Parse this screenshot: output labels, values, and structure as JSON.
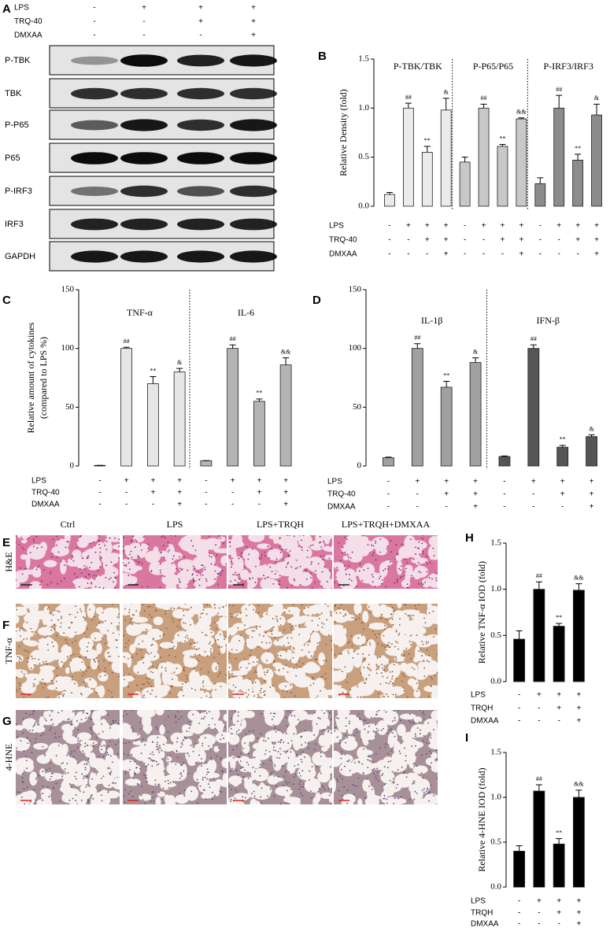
{
  "blot": {
    "panel": "A",
    "conditions": [
      {
        "name": "LPS",
        "signs": [
          "-",
          "+",
          "+",
          "+"
        ]
      },
      {
        "name": "TRQ-40",
        "signs": [
          "-",
          "-",
          "+",
          "+"
        ]
      },
      {
        "name": "DMXAA",
        "signs": [
          "-",
          "-",
          "-",
          "+"
        ]
      }
    ],
    "rows": [
      "P-TBK",
      "TBK",
      "P-P65",
      "P65",
      "P-IRF3",
      "IRF3",
      "GAPDH"
    ]
  },
  "histology": {
    "panels": [
      "E",
      "F",
      "G"
    ],
    "columns": [
      "Ctrl",
      "LPS",
      "LPS+TRQH",
      "LPS+TRQH+DMXAA"
    ],
    "rows": [
      "H&E",
      "TNF-α",
      "4-HNE"
    ]
  },
  "chart_data": [
    {
      "type": "bar",
      "panel": "B",
      "ylabel": "Relative Density (fold)",
      "ylim": [
        0,
        1.5
      ],
      "yticks": [
        {
          "value": 0,
          "label": "0.0"
        },
        0.5,
        {
          "value": 1,
          "label": "1.0"
        },
        1.5
      ],
      "groups": [
        {
          "name": "P-TBK/TBK",
          "color": "#ebebeb",
          "values": [
            0.12,
            1.0,
            0.55,
            0.98
          ],
          "errors": [
            0.02,
            0.05,
            0.06,
            0.12
          ],
          "annotations": [
            null,
            "##",
            "**",
            "&"
          ]
        },
        {
          "name": "P-P65/P65",
          "color": "#c8c8c8",
          "values": [
            0.45,
            1.0,
            0.61,
            0.89
          ],
          "errors": [
            0.05,
            0.04,
            0.02,
            0.01
          ],
          "annotations": [
            null,
            "##",
            "**",
            "&&"
          ]
        },
        {
          "name": "P-IRF3/IRF3",
          "color": "#8c8c8c",
          "values": [
            0.23,
            1.0,
            0.47,
            0.93
          ],
          "errors": [
            0.06,
            0.13,
            0.06,
            0.11
          ],
          "annotations": [
            null,
            "##",
            "**",
            "&"
          ]
        }
      ],
      "conditions": [
        {
          "name": "LPS",
          "signs": [
            "-",
            "+",
            "+",
            "+",
            "-",
            "+",
            "+",
            "+",
            "-",
            "+",
            "+",
            "+"
          ]
        },
        {
          "name": "TRQ-40",
          "signs": [
            "-",
            "-",
            "+",
            "+",
            "-",
            "-",
            "+",
            "+",
            "-",
            "-",
            "+",
            "+"
          ]
        },
        {
          "name": "DMXAA",
          "signs": [
            "-",
            "-",
            "-",
            "+",
            "-",
            "-",
            "-",
            "+",
            "-",
            "-",
            "-",
            "+"
          ]
        }
      ]
    },
    {
      "type": "bar",
      "panel": "C",
      "ylabel": [
        "Relative amount of cytokines",
        "(compared to LPS %)"
      ],
      "ylim": [
        0,
        150
      ],
      "yticks": [
        0,
        50,
        100,
        150
      ],
      "groups": [
        {
          "name": "TNF-α",
          "color": "#e6e6e6",
          "values": [
            0.5,
            100,
            70,
            80
          ],
          "errors": [
            0,
            1,
            6,
            3
          ],
          "annotations": [
            null,
            "##",
            "**",
            "&"
          ]
        },
        {
          "name": "IL-6",
          "color": "#b4b4b4",
          "values": [
            4.5,
            100,
            55,
            86
          ],
          "errors": [
            0,
            3,
            2,
            6
          ],
          "annotations": [
            null,
            "##",
            "**",
            "&&"
          ]
        }
      ],
      "conditions": [
        {
          "name": "LPS",
          "signs": [
            "-",
            "+",
            "+",
            "+",
            "-",
            "+",
            "+",
            "+"
          ]
        },
        {
          "name": "TRQ-40",
          "signs": [
            "-",
            "-",
            "+",
            "+",
            "-",
            "-",
            "+",
            "+"
          ]
        },
        {
          "name": "DMXAA",
          "signs": [
            "-",
            "-",
            "-",
            "+",
            "-",
            "-",
            "-",
            "+"
          ]
        }
      ]
    },
    {
      "type": "bar",
      "panel": "D",
      "ylim": [
        0,
        150
      ],
      "yticks": [
        0,
        50,
        100,
        150
      ],
      "groups": [
        {
          "name": "IL-1β",
          "color": "#a0a0a0",
          "values": [
            7,
            100,
            67,
            88
          ],
          "errors": [
            0.5,
            4,
            5,
            4
          ],
          "annotations": [
            null,
            "##",
            "**",
            "&"
          ]
        },
        {
          "name": "IFN-β",
          "color": "#555555",
          "values": [
            8,
            100,
            16,
            25
          ],
          "errors": [
            0.5,
            3,
            1.5,
            1.5
          ],
          "annotations": [
            null,
            "##",
            "**",
            "&"
          ]
        }
      ],
      "conditions": [
        {
          "name": "LPS",
          "signs": [
            "-",
            "+",
            "+",
            "+",
            "-",
            "+",
            "+",
            "+"
          ]
        },
        {
          "name": "TRQ-40",
          "signs": [
            "-",
            "-",
            "+",
            "+",
            "-",
            "-",
            "+",
            "+"
          ]
        },
        {
          "name": "DMXAA",
          "signs": [
            "-",
            "-",
            "-",
            "+",
            "-",
            "-",
            "-",
            "+"
          ]
        }
      ]
    },
    {
      "type": "bar",
      "panel": "H",
      "ylabel": "Relative TNF-α IOD (fold)",
      "ylim": [
        0,
        1.5
      ],
      "yticks": [
        {
          "value": 0,
          "label": "0.0"
        },
        0.5,
        {
          "value": 1,
          "label": "1.0"
        },
        1.5
      ],
      "groups": [
        {
          "color": "#000000",
          "values": [
            0.46,
            1.0,
            0.6,
            0.99
          ],
          "errors": [
            0.09,
            0.08,
            0.03,
            0.07
          ],
          "annotations": [
            null,
            "##",
            "**",
            "&&"
          ]
        }
      ],
      "conditions": [
        {
          "name": "LPS",
          "signs": [
            "-",
            "+",
            "+",
            "+"
          ]
        },
        {
          "name": "TRQH",
          "signs": [
            "-",
            "-",
            "+",
            "+"
          ]
        },
        {
          "name": "DMXAA",
          "signs": [
            "-",
            "-",
            "-",
            "+"
          ]
        }
      ]
    },
    {
      "type": "bar",
      "panel": "I",
      "ylabel": "Relative 4-HNE IOD (fold)",
      "ylim": [
        0,
        1.5
      ],
      "yticks": [
        {
          "value": 0,
          "label": "0.0"
        },
        0.5,
        {
          "value": 1,
          "label": "1.0"
        },
        1.5
      ],
      "groups": [
        {
          "color": "#000000",
          "values": [
            0.4,
            1.07,
            0.48,
            1.0
          ],
          "errors": [
            0.06,
            0.07,
            0.06,
            0.08
          ],
          "annotations": [
            null,
            "##",
            "**",
            "&&"
          ]
        }
      ],
      "conditions": [
        {
          "name": "LPS",
          "signs": [
            "-",
            "+",
            "+",
            "+"
          ]
        },
        {
          "name": "TRQH",
          "signs": [
            "-",
            "-",
            "+",
            "+"
          ]
        },
        {
          "name": "DMXAA",
          "signs": [
            "-",
            "-",
            "-",
            "+"
          ]
        }
      ]
    }
  ]
}
